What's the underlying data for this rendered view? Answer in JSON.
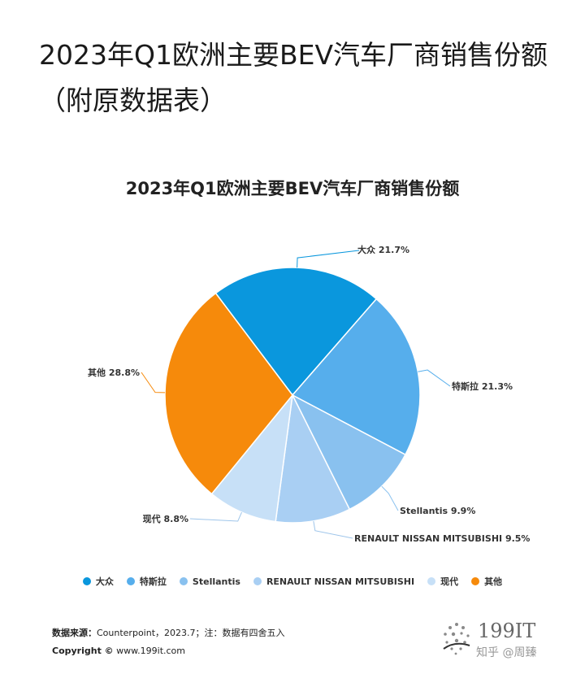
{
  "article": {
    "title": "2023年Q1欧洲主要BEV汽车厂商销售份额（附原数据表）"
  },
  "chart_data": {
    "type": "pie",
    "title": "2023年Q1欧洲主要BEV汽车厂商销售份额",
    "unit": "%",
    "slices": [
      {
        "name": "大众",
        "value": 21.7,
        "label": "大众 21.7%",
        "color": "#0a97dd"
      },
      {
        "name": "特斯拉",
        "value": 21.3,
        "label": "特斯拉 21.3%",
        "color": "#56aeec"
      },
      {
        "name": "Stellantis",
        "value": 9.9,
        "label": "Stellantis 9.9%",
        "color": "#89c1ef"
      },
      {
        "name": "RENAULT NISSAN MITSUBISHI",
        "value": 9.5,
        "label": "RENAULT NISSAN MITSUBISHI 9.5%",
        "color": "#a9cff3"
      },
      {
        "name": "现代",
        "value": 8.8,
        "label": "现代 8.8%",
        "color": "#c7e0f7"
      },
      {
        "name": "其他",
        "value": 28.8,
        "label": "其他 28.8%",
        "color": "#f68a0b"
      }
    ],
    "legend_position": "bottom"
  },
  "footer": {
    "source_label": "数据来源：",
    "source_text": "Counterpoint，2023.7；注：数据有四舍五入",
    "copyright_label": "Copyright ©",
    "copyright_text": " www.199it.com"
  },
  "logo": {
    "text": "199IT",
    "watermark": "知乎 @周臻",
    "icon": "globe-dots-icon"
  }
}
